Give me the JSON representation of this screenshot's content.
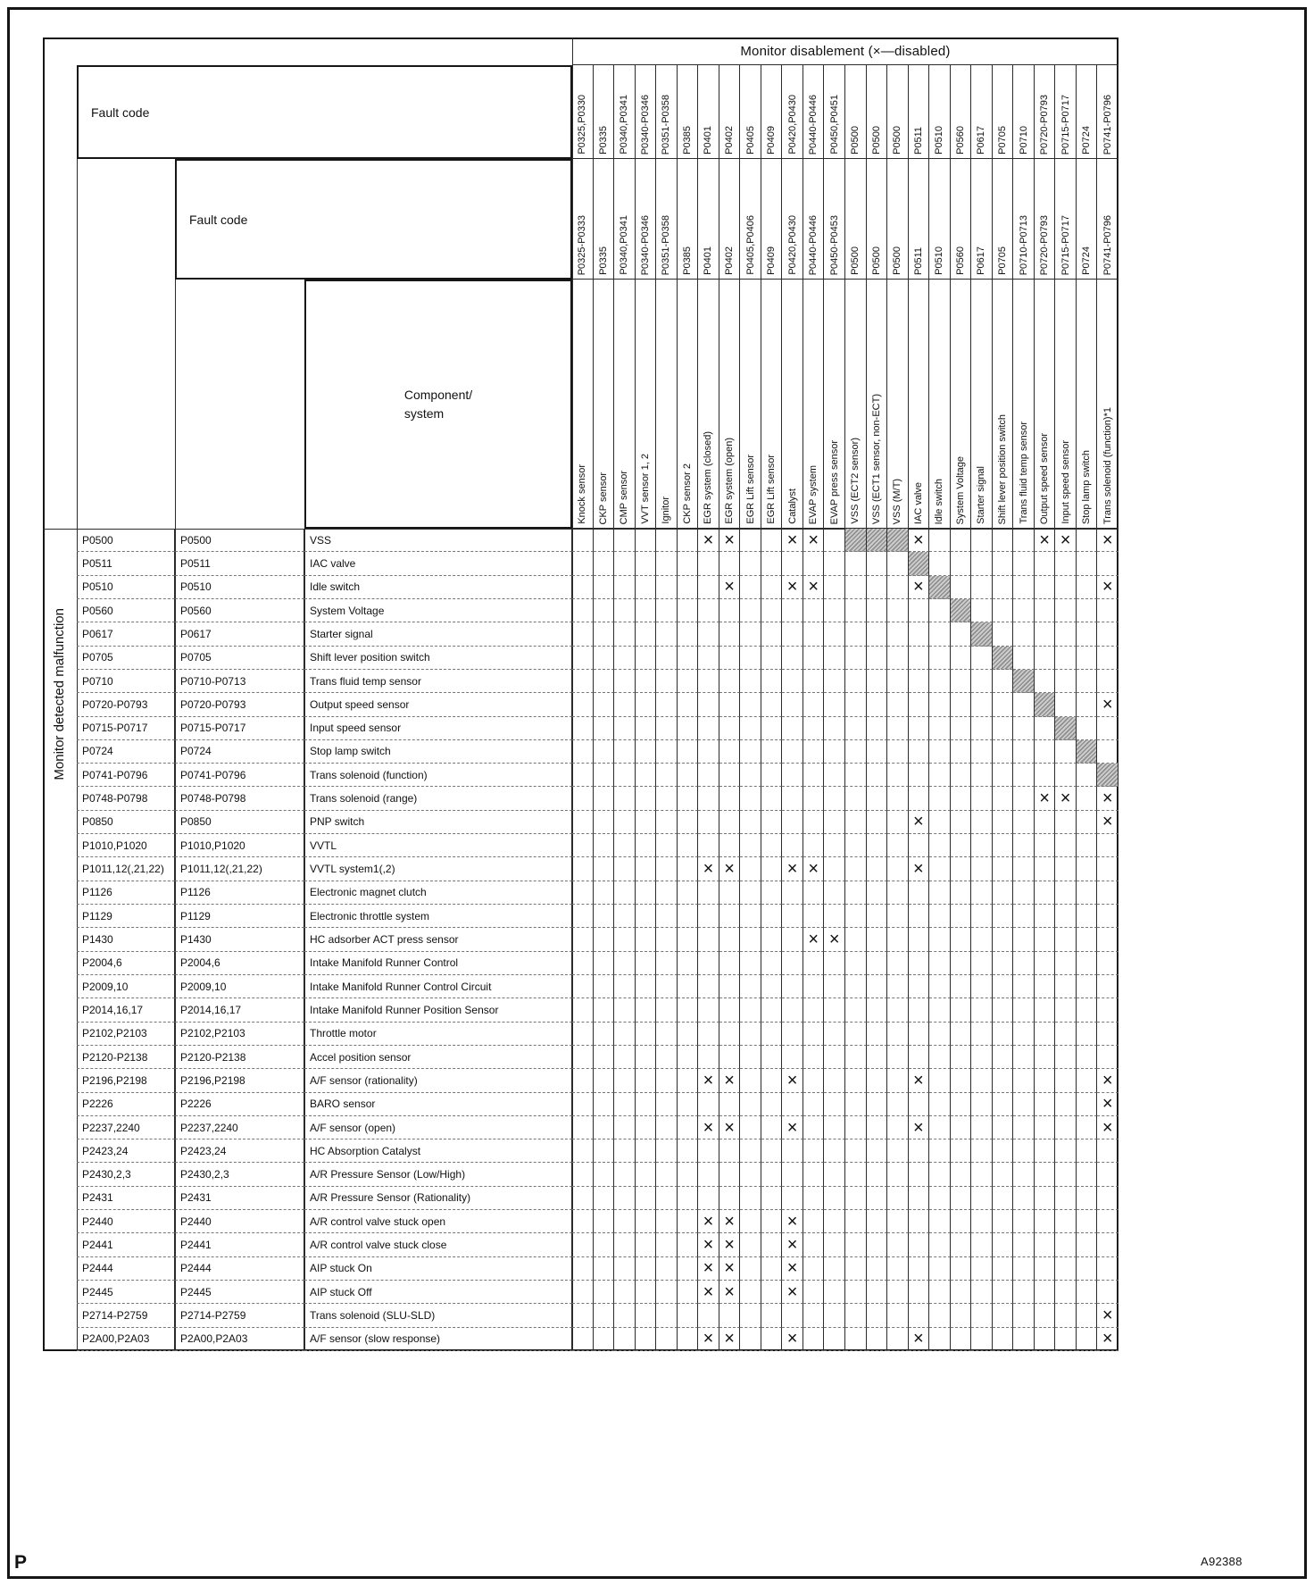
{
  "page": {
    "footer_left": "P",
    "footer_right": "A92388"
  },
  "table": {
    "title": "Monitor disablement (×—disabled)",
    "side_label": "Monitor detected malfunction",
    "tier1_label": "Fault code",
    "tier2_label": "Fault code",
    "tier3_label": "Component/\nsystem",
    "x_mark": "×",
    "columns": [
      {
        "tier1": "P0325,P0330",
        "tier2": "P0325-P0333",
        "name": "Knock sensor"
      },
      {
        "tier1": "P0335",
        "tier2": "P0335",
        "name": "CKP sensor"
      },
      {
        "tier1": "P0340,P0341",
        "tier2": "P0340,P0341",
        "name": "CMP sensor"
      },
      {
        "tier1": "P0340-P0346",
        "tier2": "P0340-P0346",
        "name": "VVT sensor 1, 2"
      },
      {
        "tier1": "P0351-P0358",
        "tier2": "P0351-P0358",
        "name": "Ignitor"
      },
      {
        "tier1": "P0385",
        "tier2": "P0385",
        "name": "CKP sensor 2"
      },
      {
        "tier1": "P0401",
        "tier2": "P0401",
        "name": "EGR system (closed)"
      },
      {
        "tier1": "P0402",
        "tier2": "P0402",
        "name": "EGR system (open)"
      },
      {
        "tier1": "P0405",
        "tier2": "P0405,P0406",
        "name": "EGR Lift sensor"
      },
      {
        "tier1": "P0409",
        "tier2": "P0409",
        "name": "EGR Lift sensor"
      },
      {
        "tier1": "P0420,P0430",
        "tier2": "P0420,P0430",
        "name": "Catalyst"
      },
      {
        "tier1": "P0440-P0446",
        "tier2": "P0440-P0446",
        "name": "EVAP system"
      },
      {
        "tier1": "P0450,P0451",
        "tier2": "P0450-P0453",
        "name": "EVAP press sensor"
      },
      {
        "tier1": "P0500",
        "tier2": "P0500",
        "name": "VSS (ECT2 sensor)"
      },
      {
        "tier1": "P0500",
        "tier2": "P0500",
        "name": "VSS (ECT1 sensor, non-ECT)"
      },
      {
        "tier1": "P0500",
        "tier2": "P0500",
        "name": "VSS (M/T)"
      },
      {
        "tier1": "P0511",
        "tier2": "P0511",
        "name": "IAC valve"
      },
      {
        "tier1": "P0510",
        "tier2": "P0510",
        "name": "Idle switch"
      },
      {
        "tier1": "P0560",
        "tier2": "P0560",
        "name": "System Voltage"
      },
      {
        "tier1": "P0617",
        "tier2": "P0617",
        "name": "Starter signal"
      },
      {
        "tier1": "P0705",
        "tier2": "P0705",
        "name": "Shift lever position switch"
      },
      {
        "tier1": "P0710",
        "tier2": "P0710-P0713",
        "name": "Trans fluid temp sensor"
      },
      {
        "tier1": "P0720-P0793",
        "tier2": "P0720-P0793",
        "name": "Output speed sensor"
      },
      {
        "tier1": "P0715-P0717",
        "tier2": "P0715-P0717",
        "name": "Input speed sensor"
      },
      {
        "tier1": "P0724",
        "tier2": "P0724",
        "name": "Stop lamp switch"
      },
      {
        "tier1": "P0741-P0796",
        "tier2": "P0741-P0796",
        "name": "Trans solenoid (function)*1"
      }
    ],
    "rows": [
      {
        "code1": "P0500",
        "code2": "P0500",
        "component": "VSS",
        "x": [
          7,
          8,
          11,
          12,
          17,
          23,
          24,
          26
        ],
        "shaded": [
          14,
          15,
          16
        ]
      },
      {
        "code1": "P0511",
        "code2": "P0511",
        "component": "IAC valve",
        "x": [],
        "shaded": [
          17
        ]
      },
      {
        "code1": "P0510",
        "code2": "P0510",
        "component": "Idle switch",
        "x": [
          8,
          11,
          12,
          17,
          26
        ],
        "shaded": [
          18
        ]
      },
      {
        "code1": "P0560",
        "code2": "P0560",
        "component": "System Voltage",
        "x": [],
        "shaded": [
          19
        ]
      },
      {
        "code1": "P0617",
        "code2": "P0617",
        "component": "Starter signal",
        "x": [],
        "shaded": [
          20
        ]
      },
      {
        "code1": "P0705",
        "code2": "P0705",
        "component": "Shift lever position switch",
        "x": [],
        "shaded": [
          21
        ]
      },
      {
        "code1": "P0710",
        "code2": "P0710-P0713",
        "component": "Trans fluid temp sensor",
        "x": [],
        "shaded": [
          22
        ]
      },
      {
        "code1": "P0720-P0793",
        "code2": "P0720-P0793",
        "component": "Output speed sensor",
        "x": [
          26
        ],
        "shaded": [
          23
        ]
      },
      {
        "code1": "P0715-P0717",
        "code2": "P0715-P0717",
        "component": "Input speed sensor",
        "x": [],
        "shaded": [
          24
        ]
      },
      {
        "code1": "P0724",
        "code2": "P0724",
        "component": "Stop lamp switch",
        "x": [],
        "shaded": [
          25
        ]
      },
      {
        "code1": "P0741-P0796",
        "code2": "P0741-P0796",
        "component": "Trans solenoid (function)",
        "x": [],
        "shaded": [
          26
        ]
      },
      {
        "code1": "P0748-P0798",
        "code2": "P0748-P0798",
        "component": "Trans solenoid (range)",
        "x": [
          23,
          24,
          26
        ],
        "shaded": []
      },
      {
        "code1": "P0850",
        "code2": "P0850",
        "component": "PNP switch",
        "x": [
          17,
          26
        ],
        "shaded": []
      },
      {
        "code1": "P1010,P1020",
        "code2": "P1010,P1020",
        "component": "VVTL",
        "x": [],
        "shaded": []
      },
      {
        "code1": "P1011,12(,21,22)",
        "code2": "P1011,12(,21,22)",
        "component": "VVTL system1(,2)",
        "x": [
          7,
          8,
          11,
          12,
          17
        ],
        "shaded": []
      },
      {
        "code1": "P1126",
        "code2": "P1126",
        "component": "Electronic magnet clutch",
        "x": [],
        "shaded": []
      },
      {
        "code1": "P1129",
        "code2": "P1129",
        "component": "Electronic throttle system",
        "x": [],
        "shaded": []
      },
      {
        "code1": "P1430",
        "code2": "P1430",
        "component": "HC adsorber ACT press sensor",
        "x": [
          12,
          13
        ],
        "shaded": []
      },
      {
        "code1": "P2004,6",
        "code2": "P2004,6",
        "component": "Intake Manifold Runner Control",
        "x": [],
        "shaded": []
      },
      {
        "code1": "P2009,10",
        "code2": "P2009,10",
        "component": "Intake Manifold Runner Control Circuit",
        "x": [],
        "shaded": []
      },
      {
        "code1": "P2014,16,17",
        "code2": "P2014,16,17",
        "component": "Intake Manifold Runner Position Sensor",
        "x": [],
        "shaded": []
      },
      {
        "code1": "P2102,P2103",
        "code2": "P2102,P2103",
        "component": "Throttle motor",
        "x": [],
        "shaded": []
      },
      {
        "code1": "P2120-P2138",
        "code2": "P2120-P2138",
        "component": "Accel position sensor",
        "x": [],
        "shaded": []
      },
      {
        "code1": "P2196,P2198",
        "code2": "P2196,P2198",
        "component": "A/F sensor (rationality)",
        "x": [
          7,
          8,
          11,
          17,
          26
        ],
        "shaded": []
      },
      {
        "code1": "P2226",
        "code2": "P2226",
        "component": "BARO sensor",
        "x": [
          26
        ],
        "shaded": []
      },
      {
        "code1": "P2237,2240",
        "code2": "P2237,2240",
        "component": "A/F sensor (open)",
        "x": [
          7,
          8,
          11,
          17,
          26
        ],
        "shaded": []
      },
      {
        "code1": "P2423,24",
        "code2": "P2423,24",
        "component": "HC Absorption Catalyst",
        "x": [],
        "shaded": []
      },
      {
        "code1": "P2430,2,3",
        "code2": "P2430,2,3",
        "component": "A/R Pressure Sensor (Low/High)",
        "x": [],
        "shaded": []
      },
      {
        "code1": "P2431",
        "code2": "P2431",
        "component": "A/R Pressure Sensor (Rationality)",
        "x": [],
        "shaded": []
      },
      {
        "code1": "P2440",
        "code2": "P2440",
        "component": "A/R control valve stuck open",
        "x": [
          7,
          8,
          11
        ],
        "shaded": []
      },
      {
        "code1": "P2441",
        "code2": "P2441",
        "component": "A/R control valve stuck close",
        "x": [
          7,
          8,
          11
        ],
        "shaded": []
      },
      {
        "code1": "P2444",
        "code2": "P2444",
        "component": "AIP stuck On",
        "x": [
          7,
          8,
          11
        ],
        "shaded": []
      },
      {
        "code1": "P2445",
        "code2": "P2445",
        "component": "AIP stuck Off",
        "x": [
          7,
          8,
          11
        ],
        "shaded": []
      },
      {
        "code1": "P2714-P2759",
        "code2": "P2714-P2759",
        "component": "Trans solenoid (SLU-SLD)",
        "x": [
          26
        ],
        "shaded": []
      },
      {
        "code1": "P2A00,P2A03",
        "code2": "P2A00,P2A03",
        "component": "A/F sensor (slow response)",
        "x": [
          7,
          8,
          11,
          17,
          26
        ],
        "shaded": []
      }
    ]
  }
}
